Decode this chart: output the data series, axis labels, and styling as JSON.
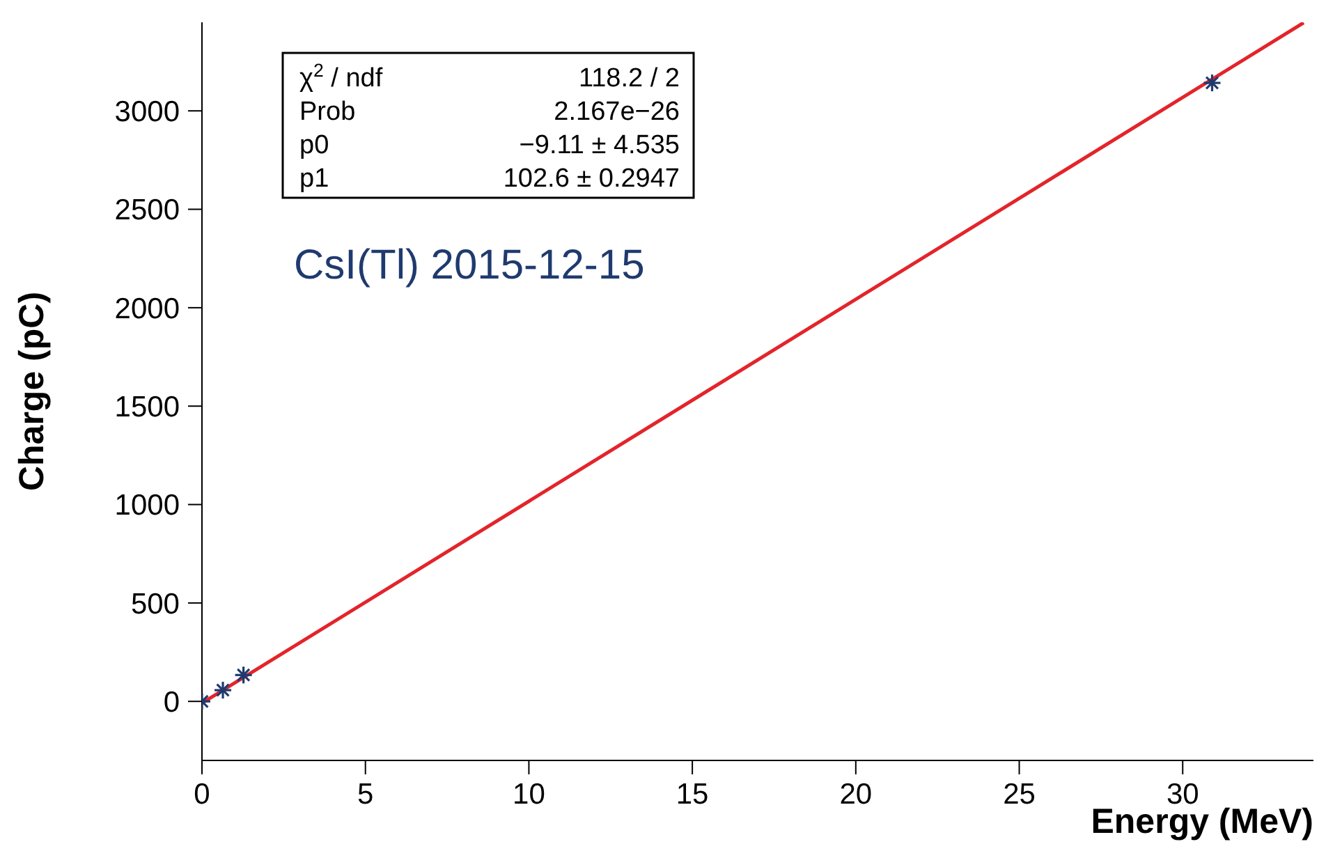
{
  "chart_data": {
    "type": "scatter",
    "xlabel": "Energy (MeV)",
    "ylabel": "Charge (pC)",
    "xlim": [
      0,
      34
    ],
    "xticks": [
      0,
      5,
      10,
      15,
      20,
      25,
      30
    ],
    "ylim": [
      -300,
      3450
    ],
    "yticks": [
      0,
      500,
      1000,
      1500,
      2000,
      2500,
      3000
    ],
    "series": [
      {
        "marker": "cross",
        "color": "#1f3a6e",
        "x": [
          0,
          0.64,
          1.27,
          30.9
        ],
        "values": [
          0,
          57,
          134,
          3142
        ]
      },
      {
        "type": "line",
        "color": "#e3242b",
        "line_style": "solid",
        "x": [
          0,
          33.7
        ],
        "values": [
          -9,
          3448
        ]
      }
    ],
    "annotations": [
      "χ$^{2}$ / ndf",
      "118.2 / 2",
      "Prob",
      "2.167e−26",
      "p0",
      "−9.11 ± 4.535",
      "p1",
      "102.6 ± 0.2947",
      "CsI(Tl) 2015-12-15"
    ]
  }
}
